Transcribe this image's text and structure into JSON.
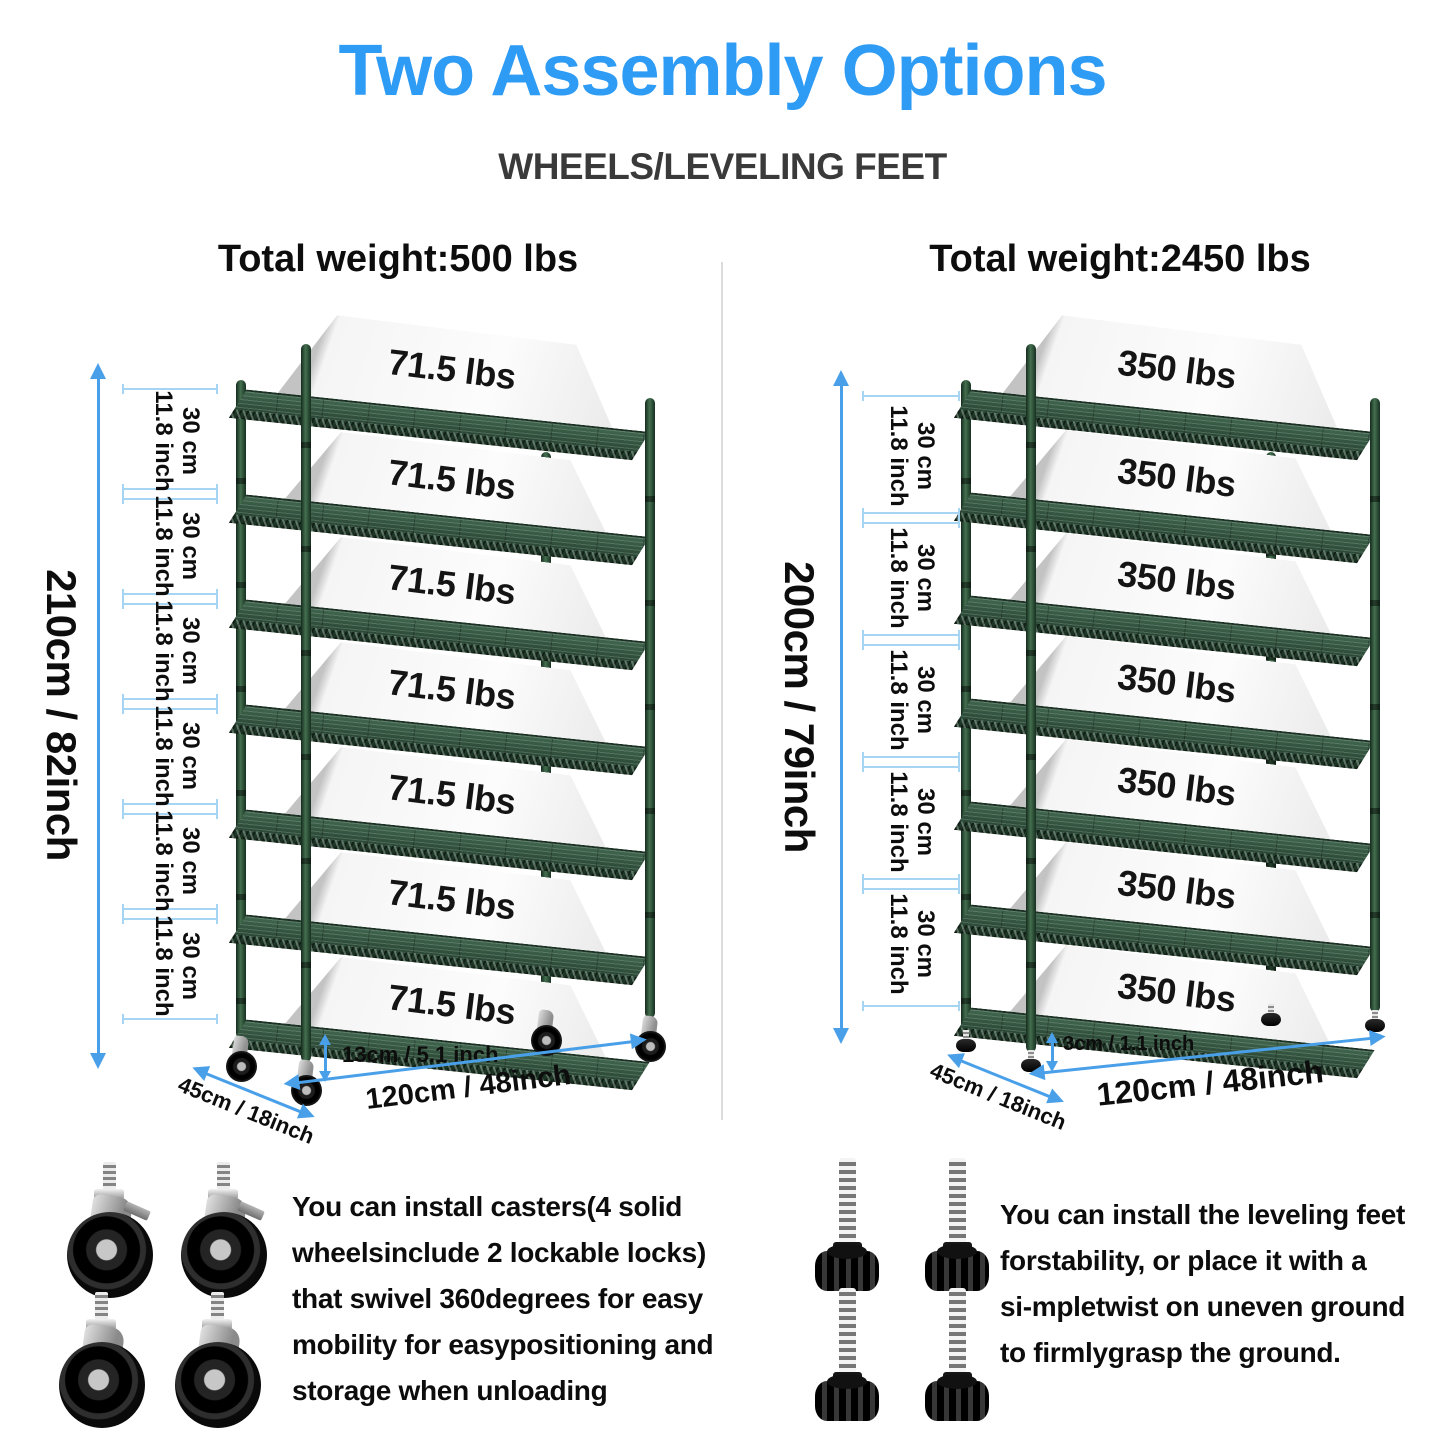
{
  "title": "Two Assembly Options",
  "subtitle": "WHEELS/LEVELING FEET",
  "left_unit": {
    "heading": "Total weight:500 lbs",
    "shelf_count": 7,
    "shelf_label": "71.5 lbs",
    "height_label": "210cm / 82inch",
    "gap_count": 6,
    "gap_cm": "30 cm",
    "gap_inch": "11.8 inch",
    "clearance_label": "13cm / 5.1 inch",
    "width_label": "120cm / 48inch",
    "depth_label": "45cm / 18inch",
    "base_type": "casters"
  },
  "right_unit": {
    "heading": "Total weight:2450 lbs",
    "shelf_count": 7,
    "shelf_label": "350 lbs",
    "height_label": "200cm / 79inch",
    "gap_count": 5,
    "gap_cm": "30 cm",
    "gap_inch": "11.8 inch",
    "clearance_label": "3cm / 1.1 inch",
    "width_label": "120cm / 48inch",
    "depth_label": "45cm / 18inch",
    "base_type": "leveling-feet"
  },
  "left_note": {
    "lines": [
      "You can install casters(4 solid",
      "wheelsinclude 2 lockable locks)",
      "that swivel 360degrees for easy",
      "mobility for easypositioning and",
      "storage when unloading"
    ]
  },
  "right_note": {
    "lines": [
      "You can install the leveling feet",
      "forstability, or place it with a",
      "si-mpletwist on uneven ground",
      "to firmlygrasp the ground."
    ]
  },
  "icons": {
    "caster_count": 4,
    "leveling_foot_count": 4
  },
  "colors": {
    "title_blue": "#2e9bf5",
    "dimension_blue": "#4aa0e8",
    "tick_blue": "#a5d5f2",
    "shelf_green": "#2e4f3b",
    "text_black": "#101010"
  }
}
